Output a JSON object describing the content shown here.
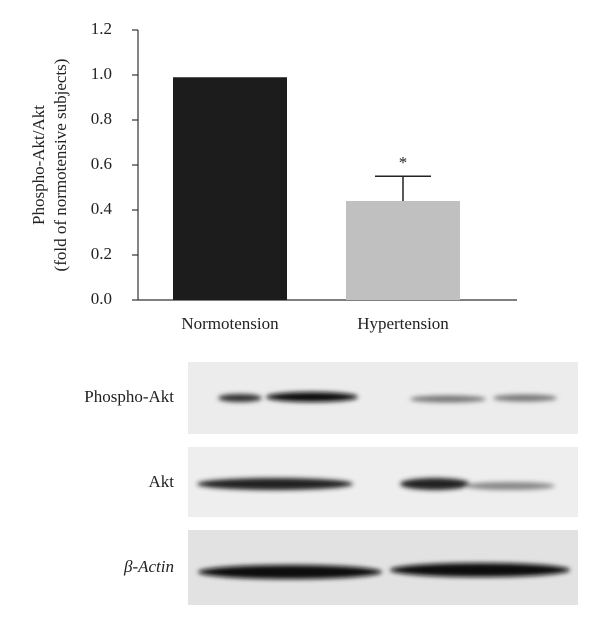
{
  "chart_data": {
    "type": "bar",
    "ylabel": [
      "Phospho-Akt/Akt",
      "(fold of normotensive subjects)"
    ],
    "categories": [
      "Normotension",
      "Hypertension"
    ],
    "values": [
      0.99,
      0.44
    ],
    "errors": [
      null,
      0.11
    ],
    "colors": [
      "#1c1c1c",
      "#c0c0c0"
    ],
    "annotations": [
      {
        "text": "*",
        "x": "Hypertension"
      }
    ],
    "ylim": [
      0,
      1.2
    ],
    "yticks": [
      {
        "value": 0,
        "label": "0.0"
      },
      0.2,
      0.4,
      0.6,
      0.8,
      {
        "value": 1,
        "label": "1.0"
      },
      1.2
    ]
  },
  "blots": [
    {
      "label": "Phospho-Akt"
    },
    {
      "label": "Akt"
    },
    {
      "label": "β-Actin"
    }
  ]
}
